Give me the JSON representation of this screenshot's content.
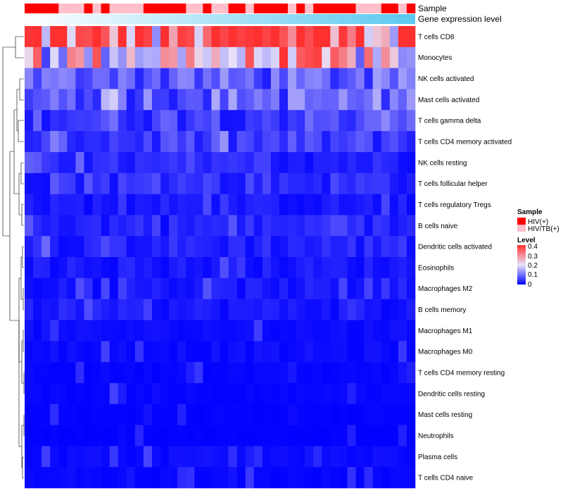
{
  "chart_data": {
    "type": "heatmap",
    "annotation_labels": [
      "Sample",
      "Gene expression level"
    ],
    "rows": [
      "T cells CD8",
      "Monocytes",
      "NK cells activated",
      "Mast cells activated",
      "T cells gamma delta",
      "T cells CD4 memory activated",
      "NK cells resting",
      "T cells follicular helper",
      "T cells regulatory  Tregs",
      "B cells naive",
      "Dendritic cells activated",
      "Eosinophils",
      "Macrophages M2",
      "B cells memory",
      "Macrophages M1",
      "Macrophages M0",
      "T cells CD4 memory resting",
      "Dendritic cells resting",
      "Mast cells resting",
      "Neutrophils",
      "Plasma cells",
      "T cells CD4 naive"
    ],
    "n_samples": 46,
    "sample_groups": [
      "HIV(+)",
      "HIV(+)",
      "HIV(+)",
      "HIV(+)",
      "HIV/TB(+)",
      "HIV/TB(+)",
      "HIV/TB(+)",
      "HIV(+)",
      "HIV/TB(+)",
      "HIV(+)",
      "HIV/TB(+)",
      "HIV/TB(+)",
      "HIV/TB(+)",
      "HIV/TB(+)",
      "HIV(+)",
      "HIV(+)",
      "HIV(+)",
      "HIV(+)",
      "HIV(+)",
      "HIV/TB(+)",
      "HIV/TB(+)",
      "HIV(+)",
      "HIV/TB(+)",
      "HIV/TB(+)",
      "HIV(+)",
      "HIV(+)",
      "HIV/TB(+)",
      "HIV(+)",
      "HIV(+)",
      "HIV(+)",
      "HIV(+)",
      "HIV/TB(+)",
      "HIV(+)",
      "HIV/TB(+)",
      "HIV(+)",
      "HIV(+)",
      "HIV(+)",
      "HIV(+)",
      "HIV(+)",
      "HIV/TB(+)",
      "HIV/TB(+)",
      "HIV/TB(+)",
      "HIV(+)",
      "HIV(+)",
      "HIV/TB(+)",
      "HIV(+)"
    ],
    "row_mean_levels": [
      0.32,
      0.22,
      0.08,
      0.09,
      0.06,
      0.05,
      0.03,
      0.04,
      0.02,
      0.03,
      0.03,
      0.02,
      0.02,
      0.02,
      0.01,
      0.01,
      0.005,
      0.005,
      0.003,
      0.002,
      0.01,
      0.005
    ],
    "legend": {
      "sample_title": "Sample",
      "sample_entries": [
        {
          "label": "HIV(+)",
          "color": "#ff0000"
        },
        {
          "label": "HIV/TB(+)",
          "color": "#ffc0cb"
        }
      ],
      "level_title": "Level",
      "level_ticks": [
        "0.4",
        "0.3",
        "0.2",
        "0.1",
        "0"
      ],
      "level_range": [
        0,
        0.4
      ]
    },
    "colors": {
      "low": "#0000ff",
      "mid": "#ffffff",
      "high": "#ff0000",
      "expr_gradient_start": "#ffffff",
      "expr_gradient_end": "#5bc8f0"
    }
  }
}
